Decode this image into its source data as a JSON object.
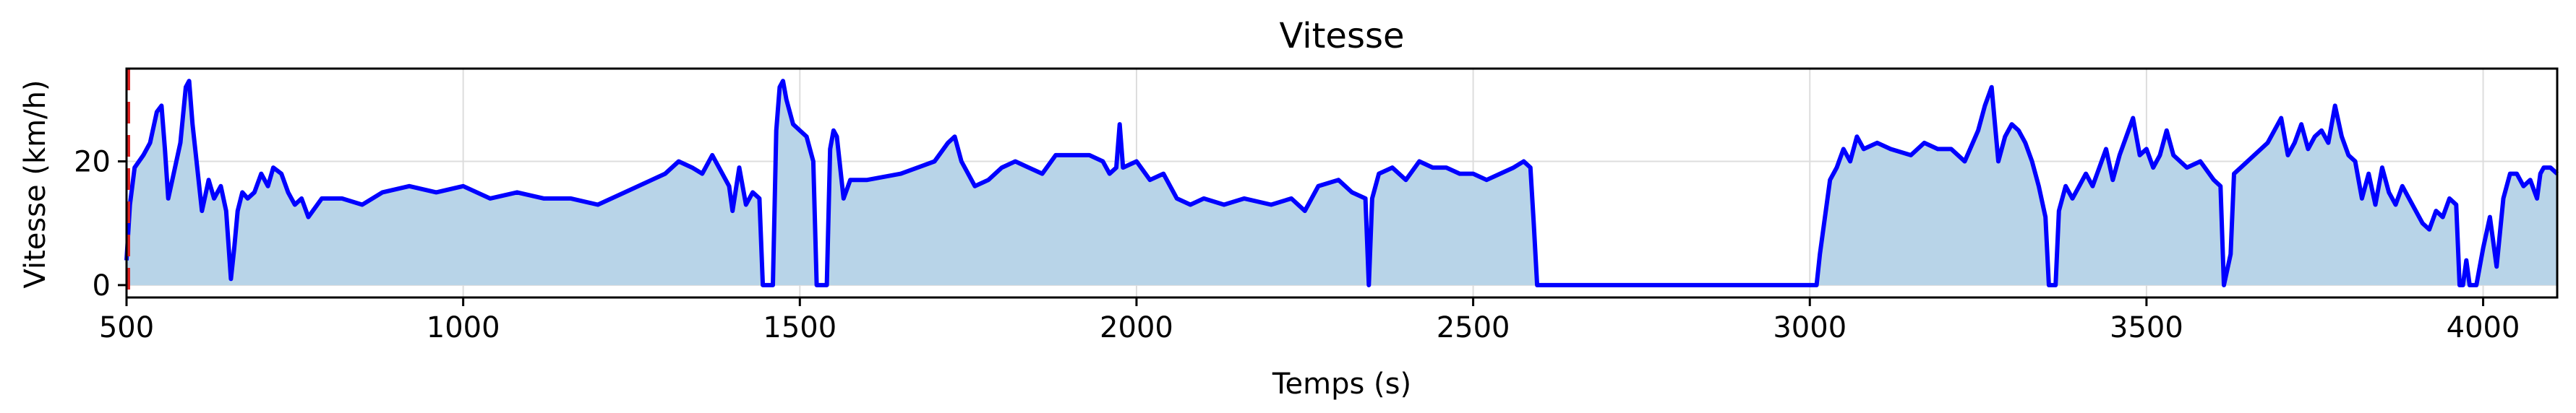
{
  "chart_data": {
    "type": "area",
    "title": "Vitesse",
    "xlabel": "Temps (s)",
    "ylabel": "Vitesse (km/h)",
    "xlim": [
      500,
      4110
    ],
    "ylim": [
      -2,
      35
    ],
    "xticks": [
      500,
      1000,
      1500,
      2000,
      2500,
      3000,
      3500,
      4000
    ],
    "yticks": [
      0,
      20
    ],
    "grid": true,
    "colors": {
      "line": "#0000ff",
      "fill": "#b8d4e8",
      "marker": "#dd2222"
    },
    "series": [
      {
        "values": [
          [
            500,
            4
          ],
          [
            505,
            13
          ],
          [
            512,
            19
          ],
          [
            525,
            21
          ],
          [
            535,
            23
          ],
          [
            545,
            28
          ],
          [
            552,
            29
          ],
          [
            557,
            22
          ],
          [
            562,
            14
          ],
          [
            570,
            18
          ],
          [
            580,
            23
          ],
          [
            588,
            32
          ],
          [
            593,
            33
          ],
          [
            598,
            26
          ],
          [
            605,
            19
          ],
          [
            612,
            12
          ],
          [
            618,
            15
          ],
          [
            622,
            17
          ],
          [
            630,
            14
          ],
          [
            640,
            16
          ],
          [
            648,
            12
          ],
          [
            655,
            1
          ],
          [
            660,
            6
          ],
          [
            665,
            12
          ],
          [
            672,
            15
          ],
          [
            680,
            14
          ],
          [
            690,
            15
          ],
          [
            700,
            18
          ],
          [
            710,
            16
          ],
          [
            718,
            19
          ],
          [
            730,
            18
          ],
          [
            740,
            15
          ],
          [
            750,
            13
          ],
          [
            760,
            14
          ],
          [
            770,
            11
          ],
          [
            790,
            14
          ],
          [
            820,
            14
          ],
          [
            850,
            13
          ],
          [
            880,
            15
          ],
          [
            920,
            16
          ],
          [
            960,
            15
          ],
          [
            1000,
            16
          ],
          [
            1040,
            14
          ],
          [
            1080,
            15
          ],
          [
            1120,
            14
          ],
          [
            1160,
            14
          ],
          [
            1200,
            13
          ],
          [
            1240,
            15
          ],
          [
            1280,
            17
          ],
          [
            1300,
            18
          ],
          [
            1320,
            20
          ],
          [
            1340,
            19
          ],
          [
            1355,
            18
          ],
          [
            1370,
            21
          ],
          [
            1380,
            19
          ],
          [
            1395,
            16
          ],
          [
            1400,
            12
          ],
          [
            1410,
            19
          ],
          [
            1420,
            13
          ],
          [
            1430,
            15
          ],
          [
            1440,
            14
          ],
          [
            1445,
            0
          ],
          [
            1460,
            0
          ],
          [
            1465,
            25
          ],
          [
            1470,
            32
          ],
          [
            1475,
            33
          ],
          [
            1480,
            30
          ],
          [
            1490,
            26
          ],
          [
            1500,
            25
          ],
          [
            1510,
            24
          ],
          [
            1520,
            20
          ],
          [
            1525,
            0
          ],
          [
            1540,
            0
          ],
          [
            1545,
            22
          ],
          [
            1550,
            25
          ],
          [
            1555,
            24
          ],
          [
            1565,
            14
          ],
          [
            1575,
            17
          ],
          [
            1600,
            17
          ],
          [
            1650,
            18
          ],
          [
            1700,
            20
          ],
          [
            1720,
            23
          ],
          [
            1730,
            24
          ],
          [
            1740,
            20
          ],
          [
            1760,
            16
          ],
          [
            1780,
            17
          ],
          [
            1800,
            19
          ],
          [
            1820,
            20
          ],
          [
            1840,
            19
          ],
          [
            1860,
            18
          ],
          [
            1880,
            21
          ],
          [
            1900,
            21
          ],
          [
            1930,
            21
          ],
          [
            1950,
            20
          ],
          [
            1960,
            18
          ],
          [
            1970,
            19
          ],
          [
            1975,
            26
          ],
          [
            1980,
            19
          ],
          [
            2000,
            20
          ],
          [
            2020,
            17
          ],
          [
            2040,
            18
          ],
          [
            2060,
            14
          ],
          [
            2080,
            13
          ],
          [
            2100,
            14
          ],
          [
            2130,
            13
          ],
          [
            2160,
            14
          ],
          [
            2200,
            13
          ],
          [
            2230,
            14
          ],
          [
            2250,
            12
          ],
          [
            2270,
            16
          ],
          [
            2300,
            17
          ],
          [
            2320,
            15
          ],
          [
            2340,
            14
          ],
          [
            2345,
            0
          ],
          [
            2350,
            14
          ],
          [
            2360,
            18
          ],
          [
            2380,
            19
          ],
          [
            2400,
            17
          ],
          [
            2420,
            20
          ],
          [
            2440,
            19
          ],
          [
            2460,
            19
          ],
          [
            2480,
            18
          ],
          [
            2500,
            18
          ],
          [
            2520,
            17
          ],
          [
            2540,
            18
          ],
          [
            2560,
            19
          ],
          [
            2575,
            20
          ],
          [
            2585,
            19
          ],
          [
            2590,
            10
          ],
          [
            2595,
            0
          ],
          [
            3000,
            0
          ],
          [
            3010,
            0
          ],
          [
            3015,
            5
          ],
          [
            3030,
            17
          ],
          [
            3040,
            19
          ],
          [
            3050,
            22
          ],
          [
            3060,
            20
          ],
          [
            3070,
            24
          ],
          [
            3080,
            22
          ],
          [
            3100,
            23
          ],
          [
            3120,
            22
          ],
          [
            3150,
            21
          ],
          [
            3170,
            23
          ],
          [
            3190,
            22
          ],
          [
            3210,
            22
          ],
          [
            3230,
            20
          ],
          [
            3250,
            25
          ],
          [
            3260,
            29
          ],
          [
            3270,
            32
          ],
          [
            3280,
            20
          ],
          [
            3290,
            24
          ],
          [
            3300,
            26
          ],
          [
            3310,
            25
          ],
          [
            3320,
            23
          ],
          [
            3330,
            20
          ],
          [
            3340,
            16
          ],
          [
            3350,
            11
          ],
          [
            3355,
            0
          ],
          [
            3365,
            0
          ],
          [
            3370,
            12
          ],
          [
            3380,
            16
          ],
          [
            3390,
            14
          ],
          [
            3400,
            16
          ],
          [
            3410,
            18
          ],
          [
            3420,
            16
          ],
          [
            3430,
            19
          ],
          [
            3440,
            22
          ],
          [
            3450,
            17
          ],
          [
            3460,
            21
          ],
          [
            3470,
            24
          ],
          [
            3480,
            27
          ],
          [
            3490,
            21
          ],
          [
            3500,
            22
          ],
          [
            3510,
            19
          ],
          [
            3520,
            21
          ],
          [
            3530,
            25
          ],
          [
            3540,
            21
          ],
          [
            3560,
            19
          ],
          [
            3580,
            20
          ],
          [
            3600,
            17
          ],
          [
            3610,
            16
          ],
          [
            3615,
            0
          ],
          [
            3625,
            5
          ],
          [
            3630,
            18
          ],
          [
            3640,
            19
          ],
          [
            3660,
            21
          ],
          [
            3680,
            23
          ],
          [
            3700,
            27
          ],
          [
            3710,
            21
          ],
          [
            3720,
            23
          ],
          [
            3730,
            26
          ],
          [
            3740,
            22
          ],
          [
            3750,
            24
          ],
          [
            3760,
            25
          ],
          [
            3770,
            23
          ],
          [
            3780,
            29
          ],
          [
            3790,
            24
          ],
          [
            3800,
            21
          ],
          [
            3810,
            20
          ],
          [
            3820,
            14
          ],
          [
            3830,
            18
          ],
          [
            3840,
            13
          ],
          [
            3850,
            19
          ],
          [
            3860,
            15
          ],
          [
            3870,
            13
          ],
          [
            3880,
            16
          ],
          [
            3890,
            14
          ],
          [
            3900,
            12
          ],
          [
            3910,
            10
          ],
          [
            3920,
            9
          ],
          [
            3930,
            12
          ],
          [
            3940,
            11
          ],
          [
            3950,
            14
          ],
          [
            3960,
            13
          ],
          [
            3965,
            0
          ],
          [
            3970,
            0
          ],
          [
            3975,
            4
          ],
          [
            3980,
            0
          ],
          [
            3990,
            0
          ],
          [
            4000,
            6
          ],
          [
            4010,
            11
          ],
          [
            4020,
            3
          ],
          [
            4030,
            14
          ],
          [
            4040,
            18
          ],
          [
            4050,
            18
          ],
          [
            4060,
            16
          ],
          [
            4070,
            17
          ],
          [
            4080,
            14
          ],
          [
            4085,
            18
          ],
          [
            4090,
            19
          ],
          [
            4100,
            19
          ],
          [
            4110,
            18
          ]
        ]
      }
    ],
    "markers": [
      {
        "x": 500,
        "style": "dashed",
        "color": "red"
      }
    ]
  }
}
